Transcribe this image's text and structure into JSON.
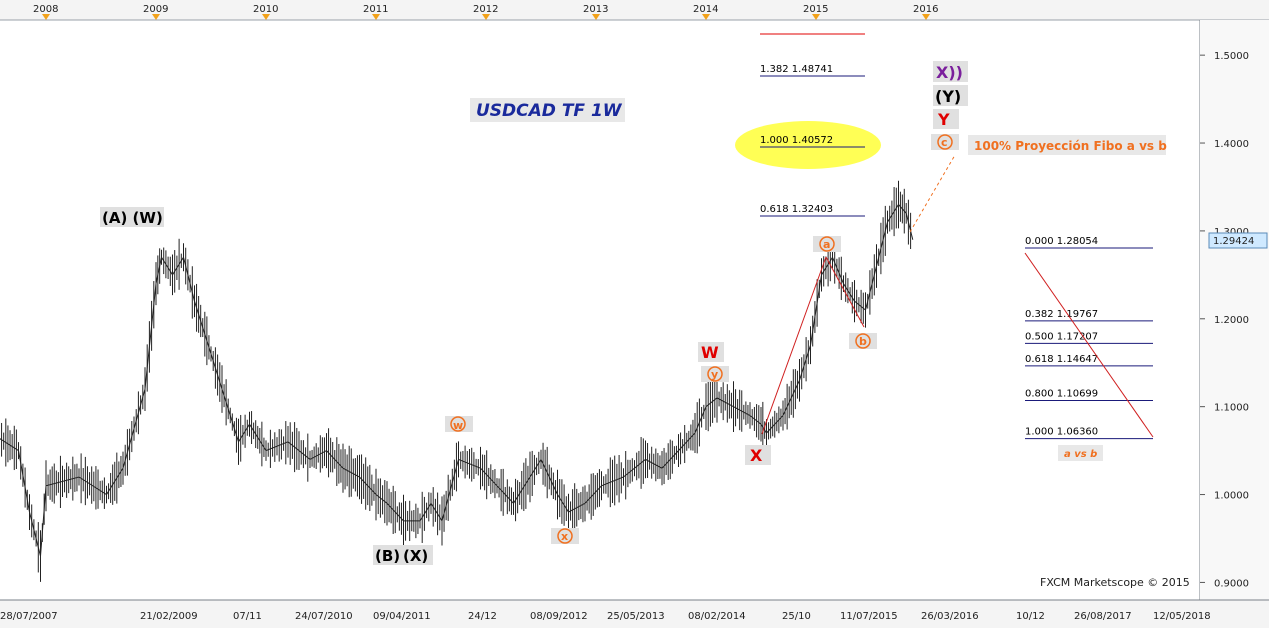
{
  "chart_data": {
    "type": "line",
    "title": "USDCAD TF 1W",
    "watermark": "FXCM Marketscope © 2015",
    "year_marks": [
      "2008",
      "2009",
      "2010",
      "2011",
      "2012",
      "2013",
      "2014",
      "2015",
      "2016"
    ],
    "date_labels": [
      "28/07/2007",
      "21/02/2009",
      "07/11",
      "24/07/2010",
      "09/04/2011",
      "24/12",
      "08/09/2012",
      "25/05/2013",
      "08/02/2014",
      "25/10",
      "11/07/2015",
      "26/03/2016",
      "10/12",
      "26/08/2017",
      "12/05/2018"
    ],
    "y_ticks": [
      "1.5000",
      "1.4000",
      "1.3000",
      "1.2000",
      "1.1000",
      "1.0000",
      "0.9000"
    ],
    "ylim": [
      0.88,
      1.54
    ],
    "current_price": "1.29424",
    "colors": {
      "price": "#222222",
      "wave_red": "#e00000",
      "wave_orange": "#f07020",
      "wave_purple": "#7a1f9c",
      "title": "#1a2a9c",
      "fib_line": "#1a1a7a",
      "highlight": "#ffff55"
    },
    "price_path": [
      [
        2007.5,
        1.07
      ],
      [
        2007.75,
        1.05
      ],
      [
        2007.85,
        0.98
      ],
      [
        2007.95,
        0.93
      ],
      [
        2008.0,
        1.01
      ],
      [
        2008.3,
        1.02
      ],
      [
        2008.55,
        1.0
      ],
      [
        2008.7,
        1.03
      ],
      [
        2008.9,
        1.12
      ],
      [
        2009.0,
        1.24
      ],
      [
        2009.05,
        1.27
      ],
      [
        2009.15,
        1.25
      ],
      [
        2009.25,
        1.27
      ],
      [
        2009.35,
        1.22
      ],
      [
        2009.5,
        1.16
      ],
      [
        2009.6,
        1.12
      ],
      [
        2009.75,
        1.06
      ],
      [
        2009.85,
        1.08
      ],
      [
        2010.0,
        1.05
      ],
      [
        2010.2,
        1.06
      ],
      [
        2010.4,
        1.04
      ],
      [
        2010.55,
        1.05
      ],
      [
        2010.7,
        1.03
      ],
      [
        2010.85,
        1.02
      ],
      [
        2011.0,
        1.0
      ],
      [
        2011.1,
        0.99
      ],
      [
        2011.25,
        0.97
      ],
      [
        2011.4,
        0.97
      ],
      [
        2011.5,
        0.99
      ],
      [
        2011.6,
        0.97
      ],
      [
        2011.75,
        1.04
      ],
      [
        2011.95,
        1.03
      ],
      [
        2012.1,
        1.01
      ],
      [
        2012.25,
        0.99
      ],
      [
        2012.4,
        1.02
      ],
      [
        2012.5,
        1.04
      ],
      [
        2012.65,
        1.0
      ],
      [
        2012.75,
        0.98
      ],
      [
        2012.9,
        0.99
      ],
      [
        2013.05,
        1.01
      ],
      [
        2013.25,
        1.02
      ],
      [
        2013.45,
        1.04
      ],
      [
        2013.6,
        1.03
      ],
      [
        2013.75,
        1.05
      ],
      [
        2013.9,
        1.07
      ],
      [
        2014.0,
        1.1
      ],
      [
        2014.1,
        1.11
      ],
      [
        2014.25,
        1.1
      ],
      [
        2014.4,
        1.09
      ],
      [
        2014.5,
        1.08
      ],
      [
        2014.55,
        1.07
      ],
      [
        2014.7,
        1.09
      ],
      [
        2014.85,
        1.13
      ],
      [
        2014.95,
        1.17
      ],
      [
        2015.05,
        1.25
      ],
      [
        2015.15,
        1.27
      ],
      [
        2015.25,
        1.24
      ],
      [
        2015.35,
        1.22
      ],
      [
        2015.45,
        1.21
      ],
      [
        2015.55,
        1.26
      ],
      [
        2015.65,
        1.31
      ],
      [
        2015.75,
        1.33
      ],
      [
        2015.82,
        1.32
      ],
      [
        2015.88,
        1.29
      ]
    ],
    "fib_projection": [
      {
        "label": "1.382 1.48741",
        "price": 1.48741
      },
      {
        "label": "1.000 1.40572",
        "price": 1.40572
      },
      {
        "label": "0.618 1.32403",
        "price": 1.32403
      }
    ],
    "fib_retracement": [
      {
        "label": "0.000 1.28054",
        "price": 1.28054
      },
      {
        "label": "0.382 1.19767",
        "price": 1.19767
      },
      {
        "label": "0.500 1.17207",
        "price": 1.17207
      },
      {
        "label": "0.618 1.14647",
        "price": 1.14647
      },
      {
        "label": "0.800 1.10699",
        "price": 1.10699
      },
      {
        "label": "1.000 1.06360",
        "price": 1.0636
      }
    ],
    "fib_retracement_tag": "a vs b",
    "projection_note": "100% Proyección Fibo a vs b",
    "wave_labels": {
      "aw": "(A) (W)",
      "bx_b": "(B)",
      "bx_x": "(X)",
      "w_small": "w",
      "x_small": "x",
      "y_small": "y",
      "W": "W",
      "X": "X",
      "a": "a",
      "b": "b",
      "c": "c",
      "Y": "Y",
      "Y_paren": "(Y)",
      "X_double": "X))"
    }
  }
}
